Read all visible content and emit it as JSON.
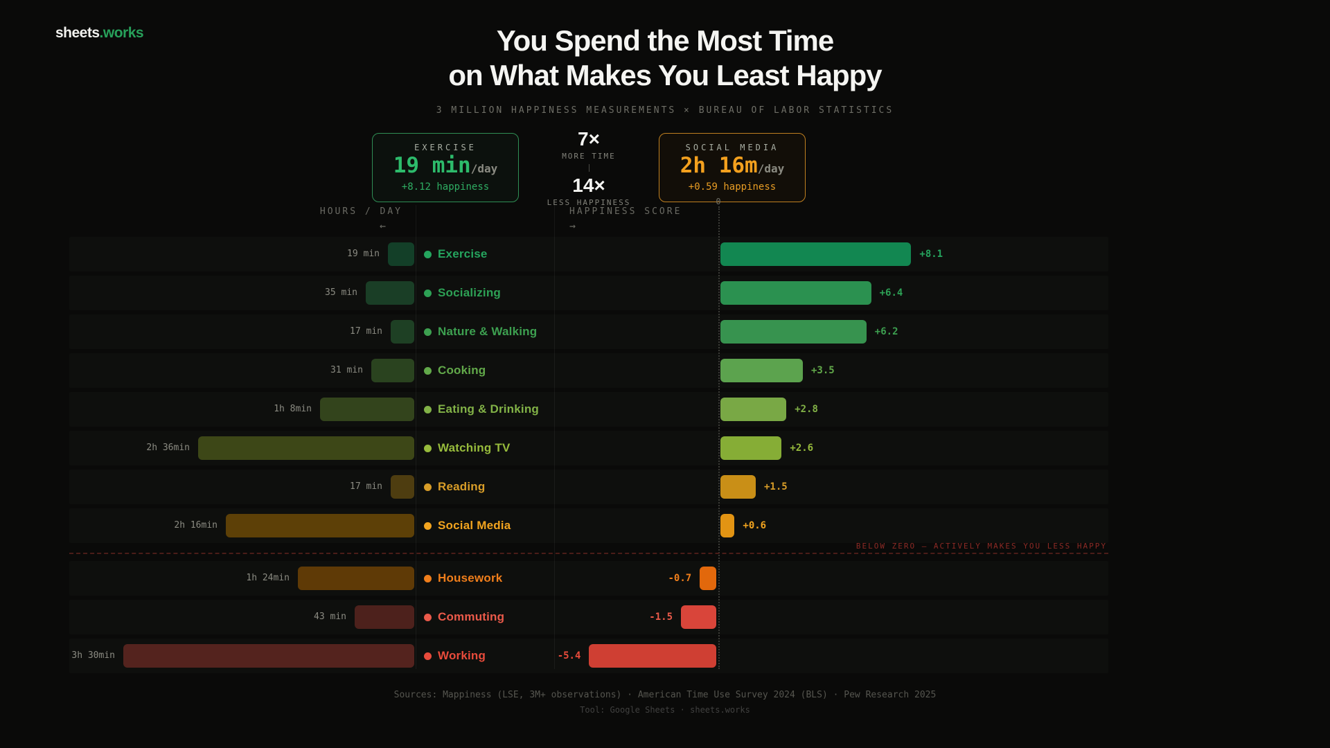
{
  "logo": {
    "primary": "sheets",
    "accent": ".works"
  },
  "header": {
    "title_line1": "You Spend the Most Time",
    "title_line2": "on What Makes You Least Happy",
    "subtitle": "3 MILLION HAPPINESS MEASUREMENTS × BUREAU OF LABOR STATISTICS"
  },
  "comparison": {
    "left_card": {
      "label": "EXERCISE",
      "value": "19 min",
      "unit": "/day",
      "happiness": "+8.12 happiness",
      "accent": "#2dbb6b"
    },
    "middle": {
      "time_factor": "7×",
      "time_caption": "MORE TIME",
      "happiness_factor": "14×",
      "happiness_caption": "LESS HAPPINESS"
    },
    "right_card": {
      "label": "SOCIAL MEDIA",
      "value": "2h 16m",
      "unit": "/day",
      "happiness": "+0.59 happiness",
      "accent": "#f3a01e"
    }
  },
  "chart_data": {
    "type": "bar",
    "title": "Time spent per day vs happiness score by activity",
    "left_axis": {
      "label": "HOURS / DAY",
      "arrow": "←"
    },
    "right_axis": {
      "label": "HAPPINESS SCORE",
      "arrow": "→",
      "zero_label": "0"
    },
    "below_zero_note": "BELOW ZERO — ACTIVELY MAKES YOU LESS HAPPY",
    "below_zero_after_index": 7,
    "rows": [
      {
        "activity": "Exercise",
        "time_label": "19 min",
        "minutes": 19,
        "happiness": 8.1,
        "score_label": "+8.1",
        "label_color": "#25a55e",
        "bar_color": "#128751",
        "time_bar_color": "#133f28"
      },
      {
        "activity": "Socializing",
        "time_label": "35 min",
        "minutes": 35,
        "happiness": 6.4,
        "score_label": "+6.4",
        "label_color": "#2da155",
        "bar_color": "#2b9150",
        "time_bar_color": "#1a3e26"
      },
      {
        "activity": "Nature & Walking",
        "time_label": "17 min",
        "minutes": 17,
        "happiness": 6.2,
        "score_label": "+6.2",
        "label_color": "#3da050",
        "bar_color": "#37934f",
        "time_bar_color": "#1e4024"
      },
      {
        "activity": "Cooking",
        "time_label": "31 min",
        "minutes": 31,
        "happiness": 3.5,
        "score_label": "+3.5",
        "label_color": "#62a94a",
        "bar_color": "#5ca34e",
        "time_bar_color": "#2a431f"
      },
      {
        "activity": "Eating & Drinking",
        "time_label": "1h 8min",
        "minutes": 68,
        "happiness": 2.8,
        "score_label": "+2.8",
        "label_color": "#82b247",
        "bar_color": "#79a845",
        "time_bar_color": "#33441c"
      },
      {
        "activity": "Watching TV",
        "time_label": "2h 36min",
        "minutes": 156,
        "happiness": 2.6,
        "score_label": "+2.6",
        "label_color": "#97bb3c",
        "bar_color": "#86ad36",
        "time_bar_color": "#3d4717"
      },
      {
        "activity": "Reading",
        "time_label": "17 min",
        "minutes": 17,
        "happiness": 1.5,
        "score_label": "+1.5",
        "label_color": "#d89d28",
        "bar_color": "#c98f17",
        "time_bar_color": "#4e3d10"
      },
      {
        "activity": "Social Media",
        "time_label": "2h 16min",
        "minutes": 136,
        "happiness": 0.6,
        "score_label": "+0.6",
        "label_color": "#f2a41f",
        "bar_color": "#e29413",
        "time_bar_color": "#5d4007"
      },
      {
        "activity": "Housework",
        "time_label": "1h 24min",
        "minutes": 84,
        "happiness": -0.7,
        "score_label": "-0.7",
        "label_color": "#f07e1b",
        "bar_color": "#e2680c",
        "time_bar_color": "#5f3a06"
      },
      {
        "activity": "Commuting",
        "time_label": "43 min",
        "minutes": 43,
        "happiness": -1.5,
        "score_label": "-1.5",
        "label_color": "#ea5a4a",
        "bar_color": "#d9453a",
        "time_bar_color": "#4d211c"
      },
      {
        "activity": "Working",
        "time_label": "3h 30min",
        "minutes": 210,
        "happiness": -5.4,
        "score_label": "-5.4",
        "label_color": "#e84b3b",
        "bar_color": "#cf3f33",
        "time_bar_color": "#54231e"
      }
    ]
  },
  "footer": {
    "sources": "Sources: Mappiness (LSE, 3M+ observations) · American Time Use Survey 2024 (BLS) · Pew Research 2025",
    "tool": "Tool: Google Sheets · sheets.works"
  }
}
